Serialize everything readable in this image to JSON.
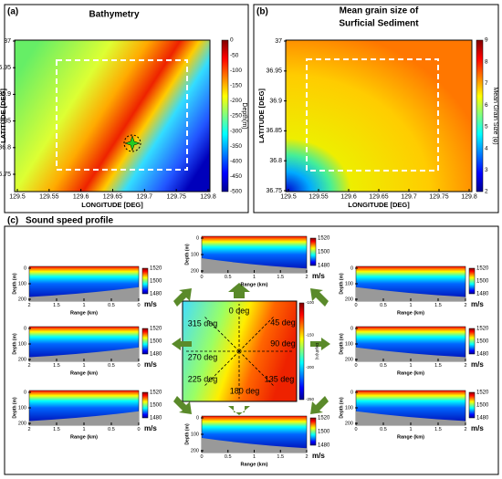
{
  "panel_a": {
    "label": "(a)",
    "title": "Bathymetry",
    "x_label": "LONGITUDE [DEG]",
    "y_label": "LATITUDE [DEG]",
    "x_ticks": [
      "129.5",
      "129.55",
      "129.6",
      "129.65",
      "129.7",
      "129.75",
      "129.8"
    ],
    "y_ticks": [
      "37",
      "36.95",
      "36.9",
      "36.85",
      "36.8",
      "36.75"
    ],
    "colorbar_label": "Depth(m)",
    "colorbar_ticks": [
      "0",
      "-50",
      "-100",
      "-150",
      "-200",
      "-250",
      "-300",
      "-350",
      "-400",
      "-450",
      "-500"
    ]
  },
  "panel_b": {
    "label": "(b)",
    "title_lines": [
      "Mean grain size of",
      "Surficial Sediment"
    ],
    "x_label": "LONGITUDE [DEG]",
    "y_label": "LATITUDE [DEG]",
    "x_ticks": [
      "129.5",
      "129.55",
      "129.6",
      "129.65",
      "129.7",
      "129.75",
      "129.8"
    ],
    "y_ticks": [
      "37",
      "36.95",
      "36.9",
      "36.85",
      "36.8",
      "36.75"
    ],
    "colorbar_label": "Mean Grain Size (φ)",
    "colorbar_ticks": [
      "9",
      "8",
      "7",
      "6",
      "5",
      "4",
      "3",
      "2"
    ]
  },
  "panel_c": {
    "label": "(c)",
    "title": "Sound speed profile",
    "directions": [
      "0 deg",
      "45 deg",
      "90 deg",
      "135 deg",
      "180 deg",
      "225 deg",
      "270 deg",
      "315 deg"
    ],
    "map_colorbar_label": "Depth(m)",
    "map_colorbar_ticks": [
      "-100",
      "-150",
      "-200",
      "-250"
    ],
    "profile": {
      "y_label": "Depth (m)",
      "x_label": "Range (km)",
      "y_ticks": [
        "0",
        "100",
        "200"
      ],
      "colorbar_ticks": [
        "1520",
        "1500",
        "1480"
      ],
      "unit": "m/s",
      "x_ticks_forward": [
        "0",
        "0.5",
        "1",
        "1.5",
        "2"
      ],
      "x_ticks_reverse": [
        "2",
        "1.5",
        "1",
        "0.5",
        "0"
      ]
    }
  }
}
